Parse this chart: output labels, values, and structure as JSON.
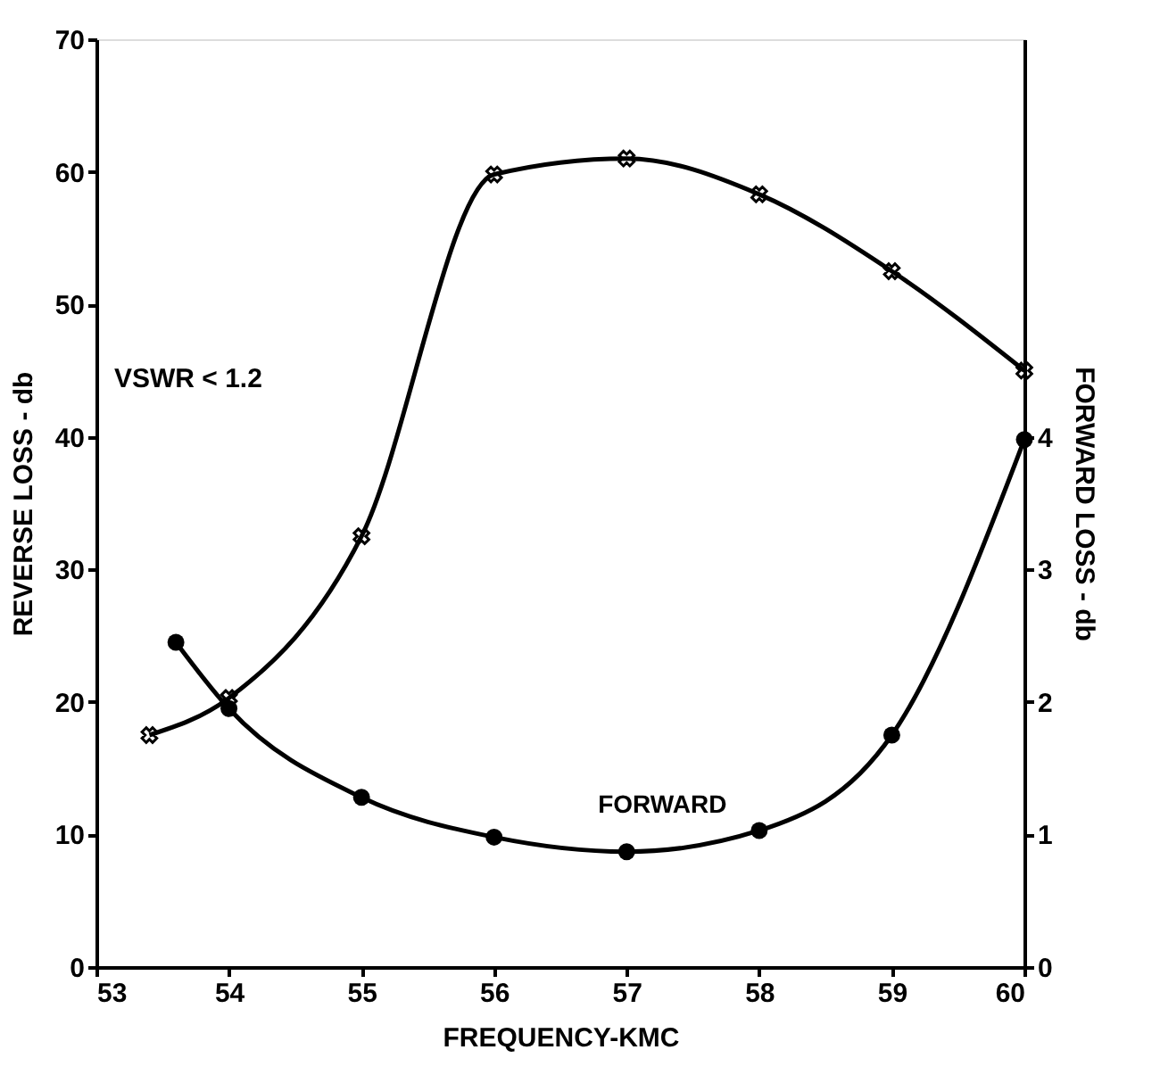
{
  "chart_data": {
    "type": "line",
    "xlabel": "FREQUENCY-KMC",
    "ylabel": "REVERSE LOSS - db",
    "y2label": "FORWARD LOSS - db",
    "xlim": [
      53,
      60
    ],
    "xticks": [
      53,
      54,
      55,
      56,
      57,
      58,
      59,
      60
    ],
    "ylim": [
      0,
      70
    ],
    "yticks": [
      0,
      10,
      20,
      30,
      40,
      50,
      60,
      70
    ],
    "y2lim": [
      0,
      7
    ],
    "y2ticks": [
      0,
      1,
      2,
      3,
      4
    ],
    "grid": false,
    "line_style": "solid",
    "annotations": [
      "VSWR < 1.2"
    ],
    "series": [
      {
        "color": "#000000",
        "marker": "cross",
        "x": [
          53.4,
          54,
          55,
          56,
          57,
          58,
          59,
          60
        ],
        "values": [
          17.5,
          20.3,
          32.5,
          59.8,
          61,
          58.3,
          52.5,
          45
        ]
      },
      {
        "name": "FORWARD",
        "axis": "y2",
        "color": "#000000",
        "marker": "circle",
        "x": [
          53.6,
          54,
          55,
          56,
          57,
          58,
          59,
          60
        ],
        "values": [
          2.45,
          1.95,
          1.28,
          0.98,
          0.87,
          1.03,
          1.75,
          3.98
        ]
      }
    ]
  }
}
